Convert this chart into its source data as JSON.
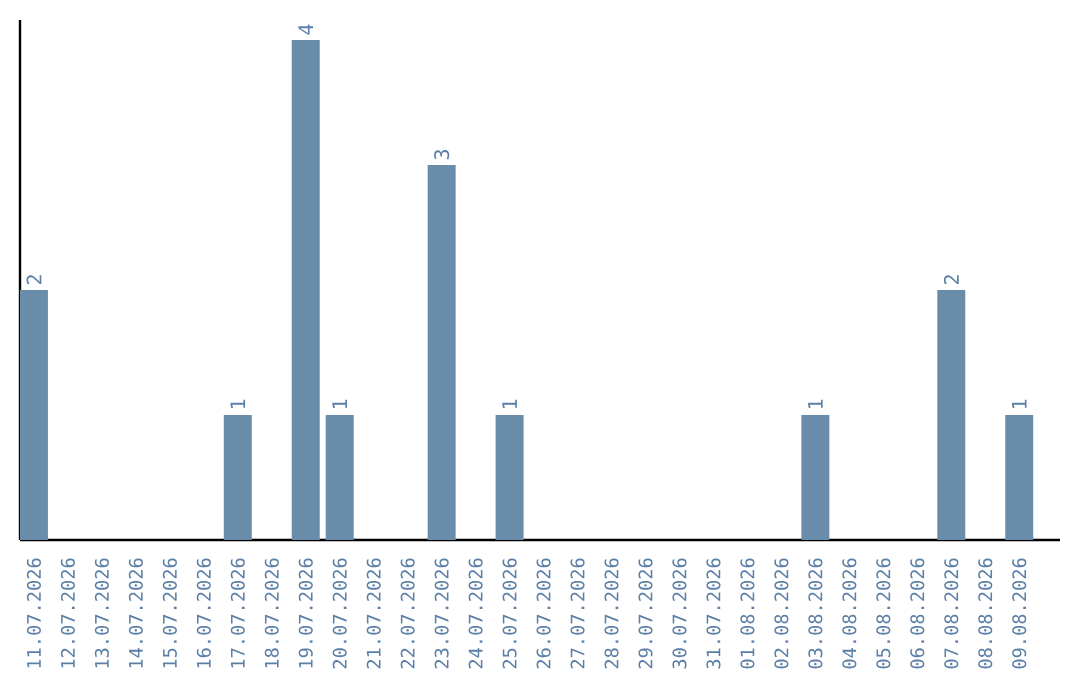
{
  "chart_data": {
    "type": "bar",
    "color": "#6a8cab",
    "categories": [
      "11.07.2026",
      "12.07.2026",
      "13.07.2026",
      "14.07.2026",
      "15.07.2026",
      "16.07.2026",
      "17.07.2026",
      "18.07.2026",
      "19.07.2026",
      "20.07.2026",
      "21.07.2026",
      "22.07.2026",
      "23.07.2026",
      "24.07.2026",
      "25.07.2026",
      "26.07.2026",
      "27.07.2026",
      "28.07.2026",
      "29.07.2026",
      "30.07.2026",
      "31.07.2026",
      "01.08.2026",
      "02.08.2026",
      "03.08.2026",
      "04.08.2026",
      "05.08.2026",
      "06.08.2026",
      "07.08.2026",
      "08.08.2026",
      "09.08.2026"
    ],
    "values": [
      2,
      0,
      0,
      0,
      0,
      0,
      1,
      0,
      4,
      1,
      0,
      0,
      3,
      0,
      1,
      0,
      0,
      0,
      0,
      0,
      0,
      0,
      0,
      1,
      0,
      0,
      0,
      2,
      0,
      1
    ],
    "value_labels": [
      "2",
      null,
      null,
      null,
      null,
      null,
      "1",
      null,
      "4",
      "1",
      null,
      null,
      "3",
      null,
      "1",
      null,
      null,
      null,
      null,
      null,
      null,
      null,
      null,
      "1",
      null,
      null,
      null,
      "2",
      null,
      "1"
    ],
    "tick_labels": "x"
  }
}
